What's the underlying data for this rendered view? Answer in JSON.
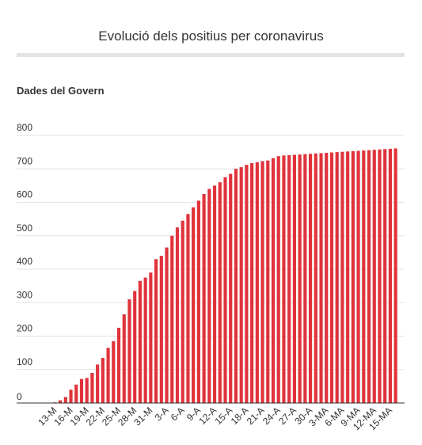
{
  "chart_data": {
    "type": "bar",
    "title": "Evolució dels positius per coronavirus",
    "subtitle": "Dades del Govern",
    "xlabel": "",
    "ylabel": "",
    "ylim": [
      0,
      800
    ],
    "yticks": [
      0,
      100,
      200,
      300,
      400,
      500,
      600,
      700,
      800
    ],
    "grid": true,
    "bar_color": "#e0333a",
    "x_tick_labels": [
      "13-M",
      "16-M",
      "19-M",
      "22-M",
      "25-M",
      "28-M",
      "31-M",
      "3-A",
      "6-A",
      "9-A",
      "12-A",
      "15-A",
      "18-A",
      "21-A",
      "24-A",
      "27-A",
      "30-A",
      "3-MA",
      "6-MA",
      "9-MA",
      "12-MA",
      "15-MA"
    ],
    "categories": [
      "13-M",
      "14-M",
      "15-M",
      "16-M",
      "17-M",
      "18-M",
      "19-M",
      "20-M",
      "21-M",
      "22-M",
      "23-M",
      "24-M",
      "25-M",
      "26-M",
      "27-M",
      "28-M",
      "29-M",
      "30-M",
      "31-M",
      "1-A",
      "2-A",
      "3-A",
      "4-A",
      "5-A",
      "6-A",
      "7-A",
      "8-A",
      "9-A",
      "10-A",
      "11-A",
      "12-A",
      "13-A",
      "14-A",
      "15-A",
      "16-A",
      "17-A",
      "18-A",
      "19-A",
      "20-A",
      "21-A",
      "22-A",
      "23-A",
      "24-A",
      "25-A",
      "26-A",
      "27-A",
      "28-A",
      "29-A",
      "30-A",
      "1-MA",
      "2-MA",
      "3-MA",
      "4-MA",
      "5-MA",
      "6-MA",
      "7-MA",
      "8-MA",
      "9-MA",
      "10-MA",
      "11-MA",
      "12-MA",
      "13-MA",
      "14-MA",
      "15-MA",
      "16-MA"
    ],
    "values": [
      2,
      8,
      18,
      40,
      55,
      72,
      75,
      90,
      115,
      135,
      165,
      185,
      225,
      265,
      310,
      335,
      365,
      375,
      390,
      430,
      440,
      465,
      500,
      525,
      545,
      565,
      585,
      605,
      625,
      640,
      650,
      660,
      675,
      685,
      700,
      705,
      712,
      717,
      720,
      723,
      725,
      732,
      738,
      740,
      741,
      742,
      743,
      744,
      745,
      746,
      747,
      748,
      749,
      750,
      751,
      752,
      753,
      754,
      755,
      756,
      757,
      758,
      759,
      760,
      761
    ]
  }
}
